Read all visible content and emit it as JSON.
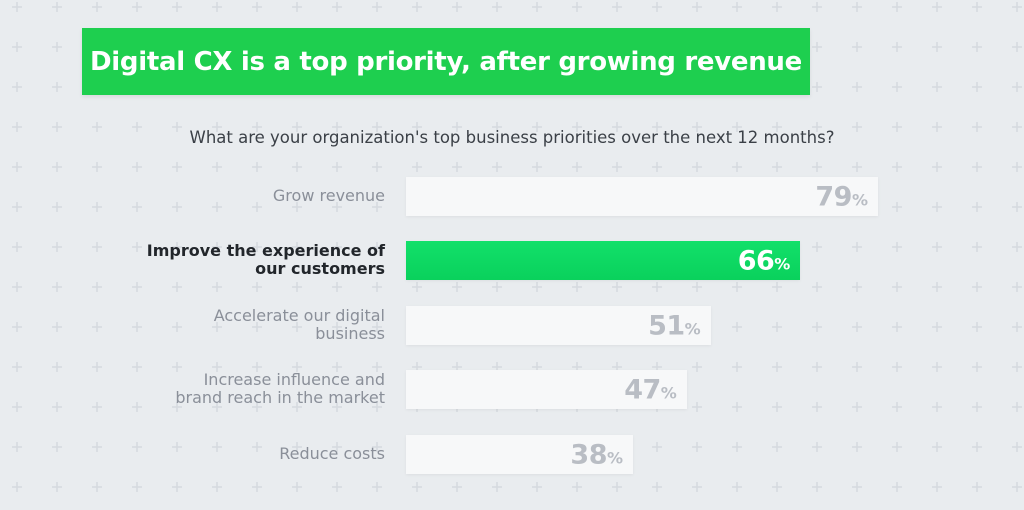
{
  "title": "Digital CX is a top priority, after growing revenue",
  "question": "What are your organization's top business priorities over the next 12 months?",
  "colors": {
    "background": "#e9ecef",
    "title_banner": "#1ecf4f",
    "highlight_bar": "#0ad15c",
    "default_bar": "#f7f8f9",
    "default_value_text": "#b9bdc4",
    "default_label_text": "#8a8f99",
    "highlight_label_text": "#22262b"
  },
  "chart_data": {
    "type": "bar",
    "orientation": "horizontal",
    "title": "Digital CX is a top priority, after growing revenue",
    "subtitle": "What are your organization's top business priorities over the next 12 months?",
    "categories": [
      "Grow revenue",
      "Improve the experience of our customers",
      "Accelerate our digital business",
      "Increase influence and brand reach in the market",
      "Reduce costs"
    ],
    "values": [
      79,
      66,
      51,
      47,
      38
    ],
    "value_suffix": "%",
    "highlighted_index": 1,
    "grid": false,
    "legend": "none",
    "xlim": [
      0,
      100
    ]
  },
  "bars": [
    {
      "label_lines": [
        "Grow revenue"
      ],
      "value": "79",
      "suffix": "%",
      "highlight": false
    },
    {
      "label_lines": [
        "Improve the experience of",
        "our customers"
      ],
      "value": "66",
      "suffix": "%",
      "highlight": true
    },
    {
      "label_lines": [
        "Accelerate our digital",
        "business"
      ],
      "value": "51",
      "suffix": "%",
      "highlight": false
    },
    {
      "label_lines": [
        "Increase influence and",
        "brand reach in the market"
      ],
      "value": "47",
      "suffix": "%",
      "highlight": false
    },
    {
      "label_lines": [
        "Reduce costs"
      ],
      "value": "38",
      "suffix": "%",
      "highlight": false
    }
  ]
}
